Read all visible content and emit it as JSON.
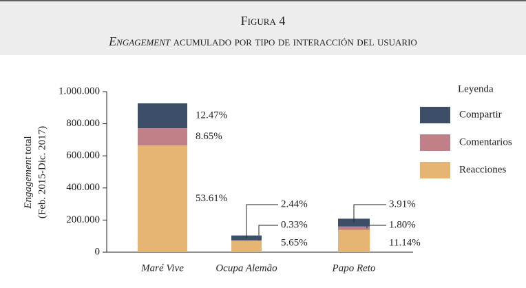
{
  "chart_data": {
    "type": "stacked_bar",
    "title": "Figura 4",
    "subtitle_italic": "Engagement",
    "subtitle": "acumulado por tipo de interacción del usuario",
    "ylabel_italic": "Engagement",
    "ylabel": "total",
    "ylabel_line2": "(Feb. 2015-Dic. 2017)",
    "legend_title": "Leyenda",
    "categories": [
      "Maré Vive",
      "Ocupa Alemão",
      "Papo Reto"
    ],
    "series": [
      {
        "name": "Reacciones",
        "color": "#e6b574",
        "values": [
          665000,
          70000,
          138000
        ],
        "percent_labels": [
          "53.61%",
          "5.65%",
          "11.14%"
        ]
      },
      {
        "name": "Comentarios",
        "color": "#c08088",
        "values": [
          107000,
          4000,
          22000
        ],
        "percent_labels": [
          "8.65%",
          "0.33%",
          "1.80%"
        ]
      },
      {
        "name": "Compartir",
        "color": "#3d4e68",
        "values": [
          155000,
          30000,
          48500
        ],
        "percent_labels": [
          "12.47%",
          "2.44%",
          "3.91%"
        ]
      }
    ],
    "ylim": [
      0,
      1000000
    ],
    "yticks": [
      0,
      {
        "value": 200000,
        "label": "200.000"
      },
      {
        "value": 400000,
        "label": "400.000"
      },
      {
        "value": 600000,
        "label": "600.000"
      },
      {
        "value": 800000,
        "label": "800.000"
      },
      {
        "value": 1000000,
        "label": "1.000.000"
      }
    ],
    "legend_position": "right"
  }
}
